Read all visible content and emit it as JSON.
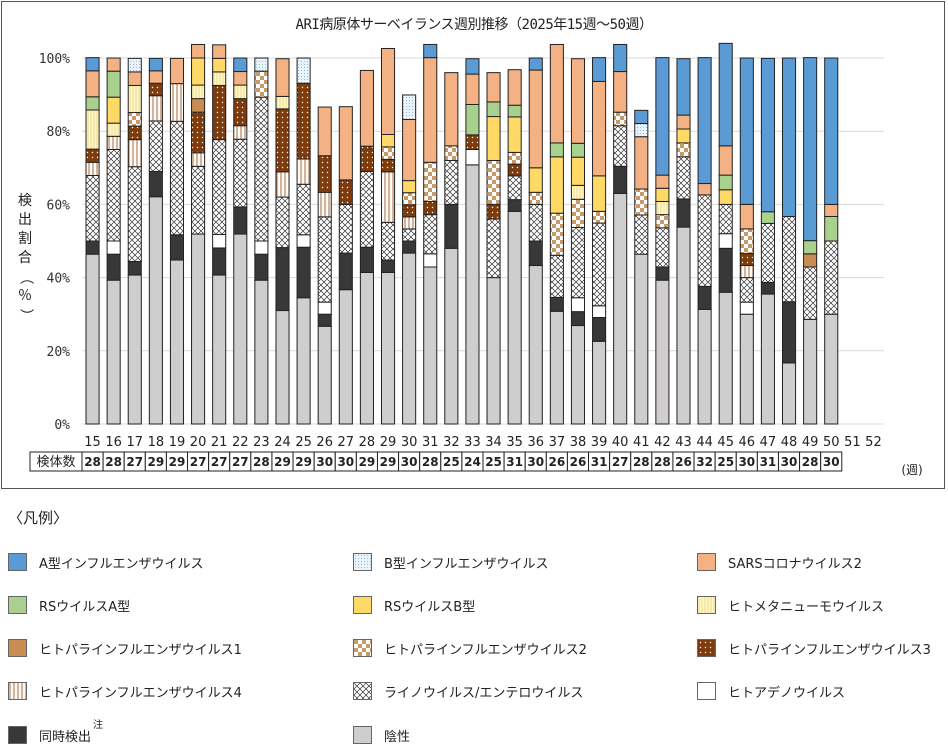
{
  "chart_data": {
    "type": "bar",
    "stacked": true,
    "title": "ARI病原体サーベイランス週別推移（2025年15週～50週）",
    "ylabel": "検出割合（％）",
    "xlabel_unit": "(週)",
    "ylim": [
      0,
      100
    ],
    "yticks": [
      "0%",
      "20%",
      "40%",
      "60%",
      "80%",
      "100%"
    ],
    "grid": true,
    "categories": [
      "15",
      "16",
      "17",
      "18",
      "19",
      "20",
      "21",
      "22",
      "23",
      "24",
      "25",
      "26",
      "27",
      "28",
      "29",
      "30",
      "31",
      "32",
      "33",
      "34",
      "35",
      "36",
      "37",
      "38",
      "39",
      "40",
      "41",
      "42",
      "43",
      "44",
      "45",
      "46",
      "47",
      "48",
      "49",
      "50",
      "51",
      "52"
    ],
    "specimen_label": "検体数",
    "specimen_counts": [
      28,
      28,
      27,
      29,
      29,
      27,
      27,
      27,
      28,
      29,
      29,
      30,
      30,
      29,
      29,
      30,
      28,
      25,
      24,
      25,
      31,
      30,
      26,
      26,
      31,
      27,
      28,
      28,
      26,
      32,
      25,
      30,
      31,
      30,
      28,
      30,
      null,
      null
    ],
    "series": [
      {
        "key": "neg",
        "name": "陰性",
        "color": "#cfcdce",
        "pattern": "solid",
        "values": [
          46.4,
          39.3,
          40.7,
          62.1,
          44.8,
          51.9,
          40.7,
          51.9,
          39.3,
          31.0,
          34.5,
          26.7,
          36.7,
          41.4,
          41.4,
          46.7,
          42.9,
          48.0,
          70.8,
          40.0,
          58.1,
          43.3,
          30.8,
          26.9,
          22.6,
          63.0,
          46.4,
          39.3,
          53.8,
          31.3,
          36.0,
          30.0,
          35.5,
          16.7,
          28.6,
          30.0,
          0,
          0
        ]
      },
      {
        "key": "co",
        "name": "同時検出",
        "color": "#383838",
        "pattern": "solid",
        "values": [
          3.6,
          7.1,
          3.7,
          6.9,
          6.9,
          0,
          7.4,
          7.4,
          7.1,
          17.2,
          13.8,
          3.3,
          10.0,
          6.9,
          3.4,
          3.3,
          0,
          12.0,
          0,
          0,
          3.2,
          6.7,
          3.8,
          3.8,
          6.5,
          7.4,
          0,
          3.6,
          7.7,
          6.3,
          12.0,
          0,
          3.2,
          16.7,
          0,
          0,
          0,
          0
        ]
      },
      {
        "key": "adeno",
        "name": "ヒトアデノウイルス",
        "color": "#ffffff",
        "pattern": "solid",
        "values": [
          0,
          3.6,
          0,
          0,
          0,
          0,
          3.7,
          0,
          3.6,
          0,
          3.4,
          3.3,
          0,
          0,
          0,
          0,
          3.6,
          0,
          4.2,
          0,
          0,
          0,
          0,
          3.8,
          3.2,
          0,
          0,
          0,
          0,
          0,
          4.0,
          3.3,
          0,
          0,
          0,
          0,
          0,
          0
        ]
      },
      {
        "key": "rhino",
        "name": "ライノウイルス/エンテロウイルス",
        "color": "#ffffff",
        "pattern": "cross",
        "values": [
          17.9,
          25.0,
          25.9,
          13.8,
          31.0,
          18.5,
          25.9,
          18.5,
          39.3,
          13.8,
          13.8,
          23.3,
          13.3,
          20.7,
          10.3,
          3.3,
          10.7,
          12.0,
          0,
          16.0,
          6.5,
          10.0,
          11.5,
          19.2,
          22.6,
          11.1,
          10.7,
          10.7,
          11.5,
          25.0,
          8.0,
          6.7,
          16.1,
          23.3,
          14.3,
          20.0,
          0,
          0
        ]
      },
      {
        "key": "para4",
        "name": "ヒトパラインフルエンザウイルス4",
        "color": "#fdf5ea",
        "pattern": "vstripe",
        "values": [
          3.6,
          3.6,
          7.4,
          6.9,
          10.3,
          3.7,
          0,
          3.7,
          0,
          6.9,
          6.9,
          6.7,
          0,
          0,
          13.8,
          3.3,
          0,
          0,
          0,
          0,
          0,
          0,
          0,
          0,
          0,
          0,
          0,
          0,
          0,
          0,
          0,
          3.3,
          0,
          0,
          0,
          0,
          0,
          0
        ]
      },
      {
        "key": "para3",
        "name": "ヒトパラインフルエンザウイルス3",
        "color": "#7e3b0c",
        "pattern": "dots",
        "values": [
          3.6,
          0,
          3.7,
          3.4,
          0,
          11.1,
          14.8,
          7.4,
          0,
          17.2,
          20.7,
          10.0,
          6.7,
          6.9,
          3.4,
          3.3,
          3.6,
          0,
          4.0,
          4.0,
          3.2,
          0,
          0,
          0,
          0,
          0,
          0,
          0,
          0,
          0,
          0,
          3.3,
          0,
          0,
          0,
          0,
          0,
          0
        ]
      },
      {
        "key": "para2",
        "name": "ヒトパラインフルエンザウイルス2",
        "color": "#c89a6a",
        "pattern": "check",
        "values": [
          0,
          0,
          3.7,
          0,
          0,
          0,
          0,
          0,
          7.1,
          0,
          0,
          0,
          0,
          0,
          3.4,
          3.3,
          10.7,
          4.0,
          0,
          12.0,
          3.2,
          3.3,
          11.5,
          7.7,
          3.2,
          3.7,
          7.1,
          3.6,
          3.8,
          0,
          0,
          6.7,
          0,
          0,
          0,
          0,
          0,
          0
        ]
      },
      {
        "key": "para1",
        "name": "ヒトパラインフルエンザウイルス1",
        "color": "#c98c52",
        "pattern": "solid",
        "values": [
          0,
          0,
          0,
          0,
          0,
          3.7,
          0,
          0,
          0,
          0,
          0,
          0,
          0,
          0,
          0,
          0,
          0,
          0,
          0,
          0,
          0,
          0,
          0,
          0,
          0,
          0,
          0,
          0,
          0,
          0,
          0,
          0,
          0,
          0,
          3.6,
          0,
          0,
          0
        ]
      },
      {
        "key": "hmpv",
        "name": "ヒトメタニューモウイルス",
        "color": "#fff6c0",
        "pattern": "vstripe-y",
        "values": [
          10.7,
          3.6,
          7.4,
          0,
          0,
          3.7,
          3.7,
          3.7,
          0,
          3.4,
          0,
          0,
          0,
          0,
          0,
          0,
          0,
          0,
          0,
          0,
          0,
          0,
          0,
          3.8,
          0,
          0,
          0,
          3.6,
          0,
          0,
          0,
          0,
          0,
          0,
          0,
          0,
          0,
          0
        ]
      },
      {
        "key": "rsb",
        "name": "RSウイルスB型",
        "color": "#ffd966",
        "pattern": "solid",
        "values": [
          0,
          7.1,
          0,
          0,
          0,
          7.4,
          3.7,
          0,
          0,
          0,
          0,
          0,
          0,
          0,
          3.4,
          3.3,
          0,
          0,
          0,
          12.0,
          9.7,
          6.7,
          15.4,
          7.7,
          9.7,
          0,
          0,
          3.6,
          3.8,
          0,
          4.0,
          0,
          0,
          0,
          0,
          0,
          0,
          0
        ]
      },
      {
        "key": "rsa",
        "name": "RSウイルスA型",
        "color": "#a9d18e",
        "pattern": "solid",
        "values": [
          3.6,
          7.1,
          0,
          0,
          0,
          0,
          0,
          0,
          0,
          0,
          0,
          0,
          0,
          0,
          0,
          0,
          0,
          0,
          8.3,
          4.0,
          3.2,
          0,
          3.8,
          3.8,
          0,
          0,
          0,
          0,
          0,
          0,
          4.0,
          0,
          3.2,
          0,
          3.6,
          6.7,
          0,
          0
        ]
      },
      {
        "key": "sars2",
        "name": "SARSコロナウイルス2",
        "color": "#f4b183",
        "pattern": "solid",
        "values": [
          7.1,
          3.6,
          3.7,
          3.4,
          6.9,
          3.7,
          3.7,
          3.7,
          0,
          10.3,
          0,
          13.3,
          20.0,
          20.7,
          23.5,
          16.7,
          28.6,
          20.0,
          8.3,
          8.0,
          9.7,
          26.7,
          26.9,
          23.1,
          25.8,
          11.1,
          14.3,
          3.6,
          3.8,
          3.1,
          8.0,
          6.7,
          0,
          0,
          0,
          3.3,
          0,
          0
        ]
      },
      {
        "key": "flub",
        "name": "B型インフルエンザウイルス",
        "color": "#deebf7",
        "pattern": "dots-b",
        "values": [
          0,
          0,
          3.7,
          0,
          0,
          0,
          0,
          0,
          3.6,
          0,
          6.9,
          0,
          0,
          0,
          0,
          6.7,
          0,
          0,
          0,
          0,
          0,
          0,
          0,
          0,
          0,
          0,
          3.6,
          0,
          0,
          0,
          0,
          0,
          0,
          0,
          0,
          0,
          0,
          0
        ]
      },
      {
        "key": "flua",
        "name": "A型インフルエンザウイルス",
        "color": "#5b9bd5",
        "pattern": "solid",
        "values": [
          3.6,
          0,
          0,
          3.4,
          0,
          0,
          0,
          3.7,
          0,
          0,
          0,
          0,
          0,
          0,
          0,
          0,
          3.6,
          0,
          4.2,
          0,
          0,
          3.3,
          0,
          0,
          6.5,
          7.4,
          3.6,
          32.1,
          15.4,
          34.4,
          28.0,
          40.0,
          41.9,
          43.3,
          50.0,
          40.0,
          0,
          0
        ]
      }
    ]
  },
  "legend": {
    "title": "〈凡例〉",
    "note_mark": "注",
    "items": [
      {
        "key": "flua",
        "label": "A型インフルエンザウイルス"
      },
      {
        "key": "flub",
        "label": "B型インフルエンザウイルス"
      },
      {
        "key": "sars2",
        "label": "SARSコロナウイルス2"
      },
      {
        "key": "rsa",
        "label": "RSウイルスA型"
      },
      {
        "key": "rsb",
        "label": "RSウイルスB型"
      },
      {
        "key": "hmpv",
        "label": "ヒトメタニューモウイルス"
      },
      {
        "key": "para1",
        "label": "ヒトパラインフルエンザウイルス1"
      },
      {
        "key": "para2",
        "label": "ヒトパラインフルエンザウイルス2"
      },
      {
        "key": "para3",
        "label": "ヒトパラインフルエンザウイルス3"
      },
      {
        "key": "para4",
        "label": "ヒトパラインフルエンザウイルス4"
      },
      {
        "key": "rhino",
        "label": "ライノウイルス/エンテロウイルス"
      },
      {
        "key": "adeno",
        "label": "ヒトアデノウイルス"
      },
      {
        "key": "co",
        "label": "同時検出"
      },
      {
        "key": "neg",
        "label": "陰性"
      }
    ]
  }
}
